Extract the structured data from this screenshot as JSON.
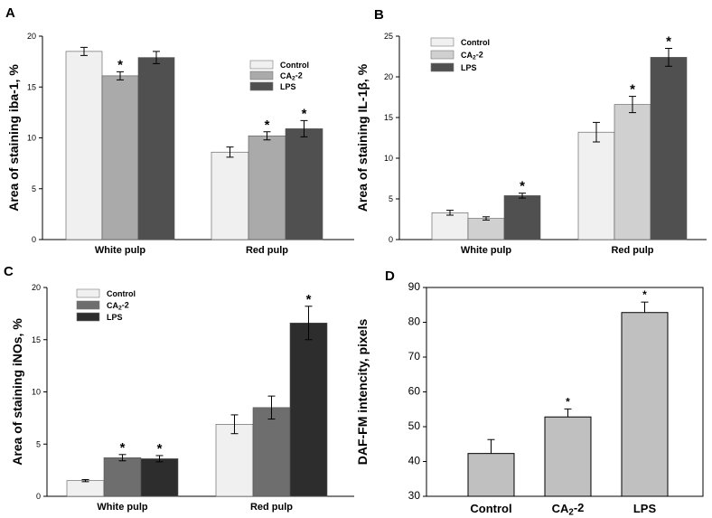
{
  "chart_data": [
    {
      "panel": "A",
      "type": "bar",
      "ylabel": "Area of staining iba-1, %",
      "ylim": [
        0,
        20
      ],
      "yticks": [
        "0",
        "5",
        "10",
        "15",
        "20"
      ],
      "categories": [
        "White pulp",
        "Red pulp"
      ],
      "legend": "top-right",
      "series": [
        {
          "name": "Control",
          "color": "#f0f0f0",
          "values": [
            18.5,
            8.6
          ],
          "errors": [
            0.4,
            0.5
          ],
          "stars": [
            false,
            false
          ]
        },
        {
          "name": "CA2-2",
          "color": "#aaaaaa",
          "values": [
            16.1,
            10.2
          ],
          "errors": [
            0.4,
            0.4
          ],
          "stars": [
            true,
            true
          ]
        },
        {
          "name": "LPS",
          "color": "#505050",
          "values": [
            17.9,
            10.9
          ],
          "errors": [
            0.6,
            0.8
          ],
          "stars": [
            false,
            true
          ]
        }
      ]
    },
    {
      "panel": "B",
      "type": "bar",
      "ylabel": "Area of staining IL-1β, %",
      "ylim": [
        0,
        25
      ],
      "yticks": [
        "0",
        "5",
        "10",
        "15",
        "20",
        "25"
      ],
      "categories": [
        "White pulp",
        "Red pulp"
      ],
      "legend": "top-left",
      "series": [
        {
          "name": "Control",
          "color": "#f0f0f0",
          "values": [
            3.3,
            13.2
          ],
          "errors": [
            0.3,
            1.2
          ],
          "stars": [
            false,
            false
          ]
        },
        {
          "name": "CA2-2",
          "color": "#d0d0d0",
          "values": [
            2.6,
            16.6
          ],
          "errors": [
            0.2,
            1.0
          ],
          "stars": [
            false,
            true
          ]
        },
        {
          "name": "LPS",
          "color": "#505050",
          "values": [
            5.4,
            22.4
          ],
          "errors": [
            0.3,
            1.1
          ],
          "stars": [
            true,
            true
          ]
        }
      ]
    },
    {
      "panel": "C",
      "type": "bar",
      "ylabel": "Area of staining iNOs, %",
      "ylim": [
        0,
        20
      ],
      "yticks": [
        "0",
        "5",
        "10",
        "15",
        "20"
      ],
      "categories": [
        "White pulp",
        "Red pulp"
      ],
      "legend": "top-left",
      "series": [
        {
          "name": "Control",
          "color": "#f0f0f0",
          "values": [
            1.5,
            6.9
          ],
          "errors": [
            0.1,
            0.9
          ],
          "stars": [
            false,
            false
          ]
        },
        {
          "name": "CA2-2",
          "color": "#6e6e6e",
          "values": [
            3.7,
            8.5
          ],
          "errors": [
            0.3,
            1.1
          ],
          "stars": [
            true,
            false
          ]
        },
        {
          "name": "LPS",
          "color": "#2d2d2d",
          "values": [
            3.6,
            16.6
          ],
          "errors": [
            0.3,
            1.6
          ],
          "stars": [
            true,
            true
          ]
        }
      ]
    },
    {
      "panel": "D",
      "type": "bar",
      "ylabel": "DAF-FM intencity, pixels",
      "ylim": [
        30,
        90
      ],
      "yticks": [
        "30",
        "40",
        "50",
        "60",
        "70",
        "80",
        "90"
      ],
      "categories": [
        "Control",
        "CA2-2",
        "LPS"
      ],
      "series": [
        {
          "name": "",
          "color": "#c0c0c0",
          "values": [
            42.3,
            52.8,
            82.8
          ],
          "errors": [
            4.0,
            2.3,
            3.0
          ],
          "stars": [
            false,
            true,
            true
          ]
        }
      ]
    }
  ],
  "star_symbol": "*"
}
